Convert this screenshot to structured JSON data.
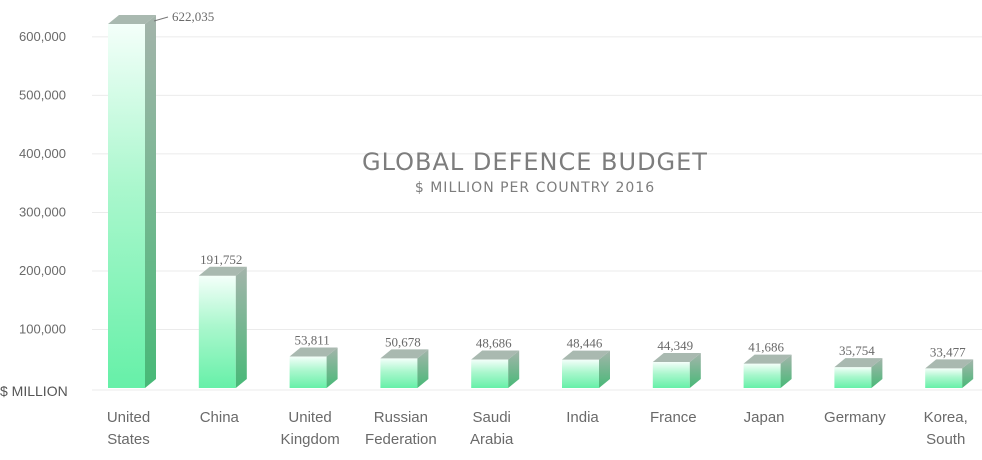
{
  "chart_data": {
    "type": "bar",
    "title": "GLOBAL DEFENCE BUDGET",
    "subtitle": "$ MILLION PER COUNTRY 2016",
    "ylabel": "$ MILLION",
    "ylim": [
      0,
      622035
    ],
    "yticks": [
      100000,
      200000,
      300000,
      400000,
      500000,
      600000
    ],
    "ytick_labels": [
      "100,000",
      "200,000",
      "300,000",
      "400,000",
      "500,000",
      "600,000"
    ],
    "categories": [
      [
        "United",
        "States"
      ],
      [
        "China"
      ],
      [
        "United",
        "Kingdom"
      ],
      [
        "Russian",
        "Federation"
      ],
      [
        "Saudi",
        "Arabia"
      ],
      [
        "India"
      ],
      [
        "France"
      ],
      [
        "Japan"
      ],
      [
        "Germany"
      ],
      [
        "Korea,",
        "South"
      ]
    ],
    "values": [
      622035,
      191752,
      53811,
      50678,
      48686,
      48446,
      44349,
      41686,
      35754,
      33477
    ],
    "value_labels": [
      "622,035",
      "191,752",
      "53,811",
      "50,678",
      "48,686",
      "48,446",
      "44,349",
      "41,686",
      "35,754",
      "33,477"
    ],
    "grid": true,
    "colors": {
      "bar_light": "#eafff4",
      "bar_mid": "#8ff5be",
      "bar_base": "#66f0a8",
      "side": "#57c98a",
      "top": "#a9b9b0",
      "grid": "#ebebeb",
      "text": "#6a6a6a"
    }
  }
}
